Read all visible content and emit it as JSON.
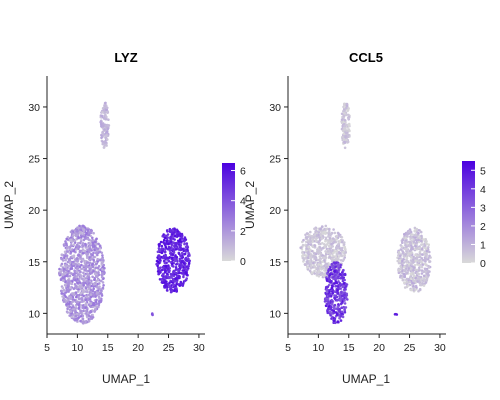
{
  "chart_data": [
    {
      "type": "scatter",
      "title": "LYZ",
      "xlabel": "UMAP_1",
      "ylabel": "UMAP_2",
      "xlim": [
        5,
        31
      ],
      "ylim": [
        8,
        33
      ],
      "xticks": [
        5,
        10,
        15,
        20,
        25,
        30
      ],
      "yticks": [
        10,
        15,
        20,
        25,
        30
      ],
      "legend": {
        "position": "right",
        "ticks": [
          0,
          2,
          4,
          6
        ],
        "min": 0,
        "max": 6.5
      },
      "color_low": "#d9d9d9",
      "color_high": "#4b00e0",
      "clusters": [
        {
          "name": "cluster-top",
          "x": [
            13.8,
            15.2
          ],
          "y": [
            26.0,
            30.5
          ],
          "expression": [
            0.5,
            1.6
          ]
        },
        {
          "name": "cluster-left",
          "x": [
            7.0,
            14.5
          ],
          "y": [
            9.0,
            18.5
          ],
          "expression": [
            1.0,
            3.0
          ]
        },
        {
          "name": "cluster-right",
          "x": [
            23.0,
            28.5
          ],
          "y": [
            12.0,
            18.3
          ],
          "expression": [
            4.5,
            6.3
          ]
        },
        {
          "name": "isolated-point",
          "x": [
            22.5,
            22.5
          ],
          "y": [
            9.8,
            9.8
          ],
          "expression": [
            4.0,
            4.0
          ]
        }
      ]
    },
    {
      "type": "scatter",
      "title": "CCL5",
      "xlabel": "UMAP_1",
      "ylabel": "UMAP_2",
      "xlim": [
        5,
        31
      ],
      "ylim": [
        8,
        33
      ],
      "xticks": [
        5,
        10,
        15,
        20,
        25,
        30
      ],
      "yticks": [
        10,
        15,
        20,
        25,
        30
      ],
      "legend": {
        "position": "right",
        "ticks": [
          0,
          1,
          2,
          3,
          4,
          5
        ],
        "min": 0,
        "max": 5.5
      },
      "color_low": "#d9d9d9",
      "color_high": "#4b00e0",
      "clusters": [
        {
          "name": "cluster-top",
          "x": [
            13.8,
            15.2
          ],
          "y": [
            26.0,
            30.5
          ],
          "expression": [
            0.0,
            1.0
          ]
        },
        {
          "name": "cluster-left-upper",
          "x": [
            7.0,
            14.5
          ],
          "y": [
            13.5,
            18.5
          ],
          "expression": [
            0.0,
            1.0
          ]
        },
        {
          "name": "cluster-left-lower",
          "x": [
            11.0,
            14.8
          ],
          "y": [
            9.0,
            15.0
          ],
          "expression": [
            3.0,
            5.2
          ]
        },
        {
          "name": "cluster-right",
          "x": [
            23.0,
            28.5
          ],
          "y": [
            12.0,
            18.3
          ],
          "expression": [
            0.0,
            1.2
          ]
        },
        {
          "name": "isolated-point",
          "x": [
            22.8,
            22.8
          ],
          "y": [
            9.8,
            9.8
          ],
          "expression": [
            4.8,
            4.8
          ]
        }
      ]
    }
  ]
}
